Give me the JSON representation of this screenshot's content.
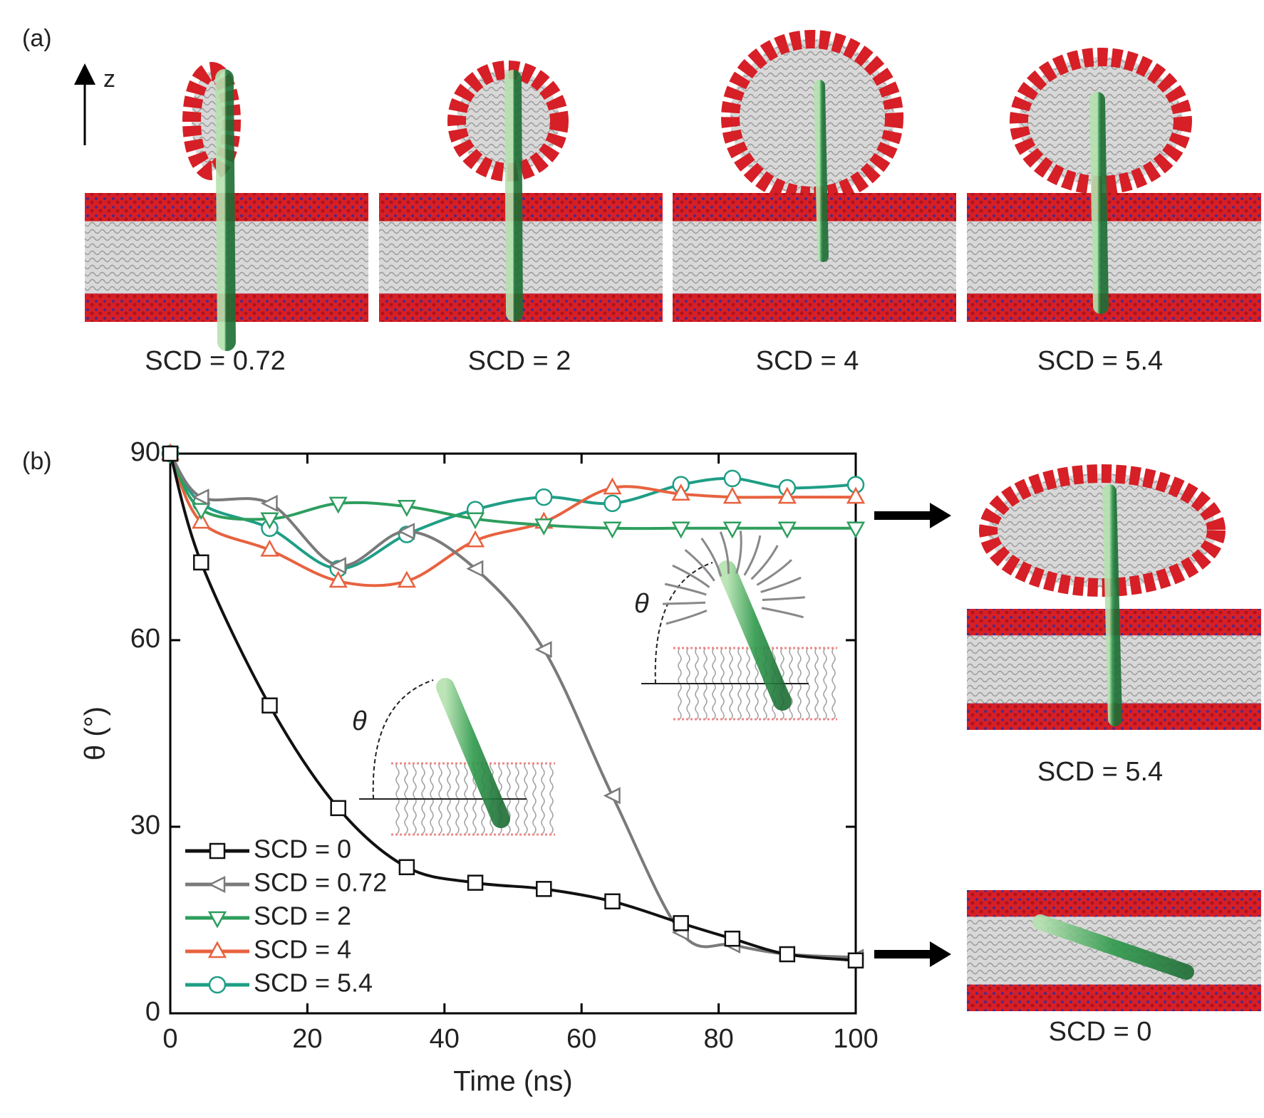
{
  "panel_a": {
    "label": "(a)",
    "axis_label": "z",
    "captions": [
      "SCD = 0.72",
      "SCD = 2",
      "SCD = 4",
      "SCD = 5.4"
    ]
  },
  "panel_b_side": {
    "captions": [
      "SCD = 5.4",
      "SCD = 0"
    ]
  },
  "chart_data": {
    "type": "line",
    "panel_label": "(b)",
    "x_label": "Time (ns)",
    "y_label": "θ (°)",
    "inset_labels": [
      "θ",
      "θ"
    ],
    "x": [
      0,
      4.5,
      14.5,
      24.5,
      34.5,
      44.5,
      54.5,
      64.5,
      74.5,
      82,
      90,
      100
    ],
    "xlim": [
      0,
      100
    ],
    "xticks": [
      0,
      20,
      40,
      60,
      80,
      100
    ],
    "ylim": [
      0,
      90
    ],
    "yticks": [
      0,
      30,
      60,
      90
    ],
    "grid": false,
    "legend": "lower-left",
    "series": [
      {
        "name": "SCD = 0",
        "color": "#111111",
        "marker": "square",
        "values": [
          90,
          72.5,
          49.5,
          33,
          23.5,
          21,
          20,
          18,
          14.5,
          12,
          9.5,
          8.5
        ]
      },
      {
        "name": "SCD = 0.72",
        "color": "#7a7a7a",
        "marker": "triangle-left",
        "values": [
          90,
          83,
          82,
          72,
          77.5,
          71.5,
          58.5,
          35,
          13,
          11,
          9.5,
          9
        ]
      },
      {
        "name": "SCD = 2",
        "color": "#2e9e5e",
        "marker": "triangle-down",
        "values": [
          90,
          81,
          79.5,
          82,
          81.5,
          79.5,
          78.5,
          78,
          78,
          78,
          78,
          78
        ]
      },
      {
        "name": "SCD = 4",
        "color": "#e8623f",
        "marker": "triangle-up",
        "values": [
          90,
          79,
          74.5,
          69.5,
          69.5,
          76,
          79,
          84.5,
          83.5,
          83,
          83,
          83
        ]
      },
      {
        "name": "SCD = 5.4",
        "color": "#1f9e86",
        "marker": "circle",
        "values": [
          90,
          82,
          78,
          71.5,
          77,
          81,
          83,
          82,
          85,
          86,
          84.5,
          85
        ]
      }
    ]
  }
}
